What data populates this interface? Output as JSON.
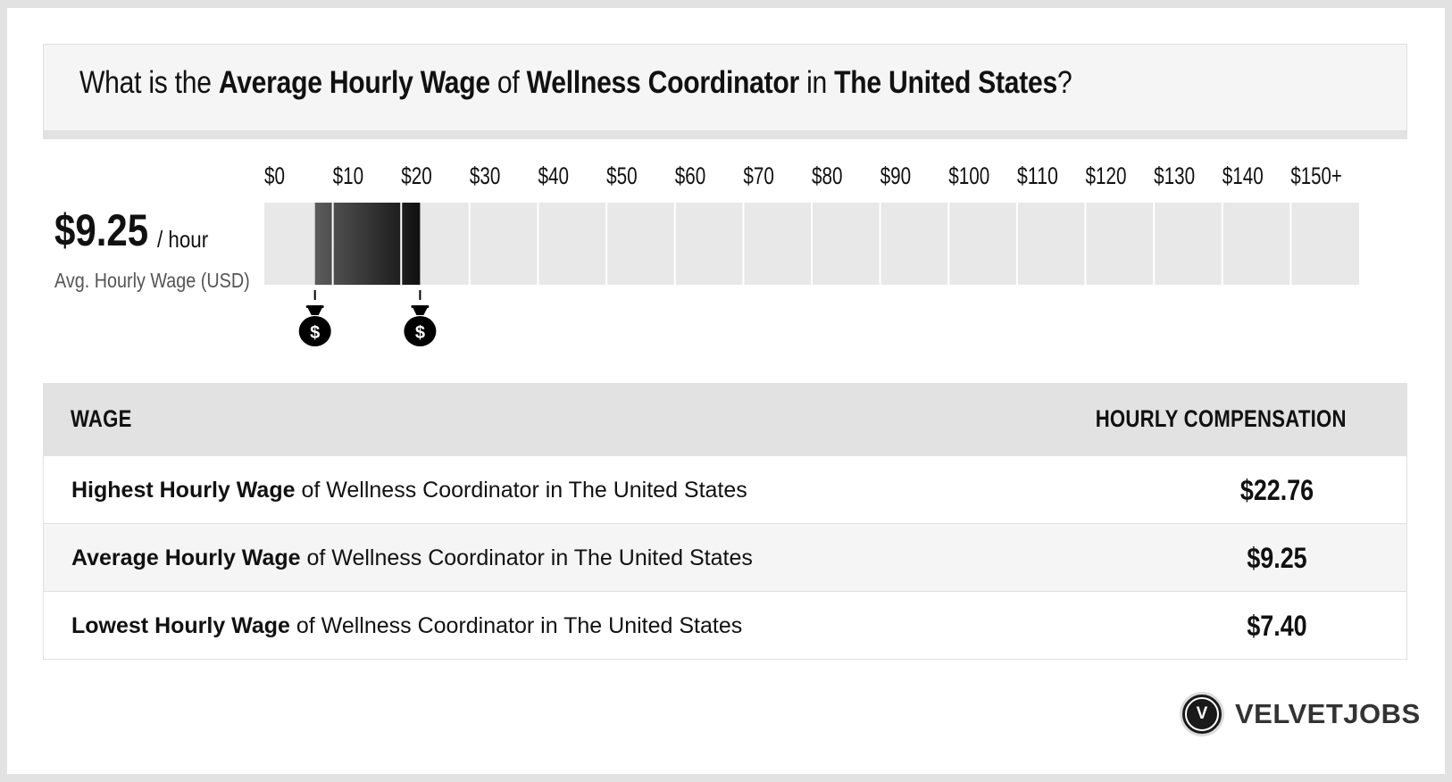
{
  "header": {
    "q_prefix": "What is the ",
    "q_metric": "Average Hourly Wage",
    "q_of": " of ",
    "q_job": "Wellness Coordinator",
    "q_in": " in ",
    "q_location": "The United States",
    "q_suffix": "?"
  },
  "summary": {
    "value": "$9.25",
    "unit": "/ hour",
    "label": "Avg. Hourly Wage (USD)"
  },
  "chart_data": {
    "type": "bar",
    "orientation": "horizontal-range",
    "categories": [
      "$0",
      "$10",
      "$20",
      "$30",
      "$40",
      "$50",
      "$60",
      "$70",
      "$80",
      "$90",
      "$100",
      "$110",
      "$120",
      "$130",
      "$140",
      "$150+"
    ],
    "xlim": [
      0,
      160
    ],
    "range_low": 7.4,
    "range_avg": 9.25,
    "range_high": 22.76,
    "markers": [
      {
        "name": "money-bag-low-icon",
        "value": 7.4
      },
      {
        "name": "money-bag-high-icon",
        "value": 22.76
      }
    ],
    "colors": {
      "track": "#e8e8e8",
      "divider": "#ffffff",
      "range_light": "#5c5c5c",
      "range_dark": "#101010",
      "marker": "#000000"
    }
  },
  "table": {
    "col_wage": "WAGE",
    "col_comp": "HOURLY COMPENSATION",
    "rows": [
      {
        "metric": "Highest Hourly Wage",
        "rest": " of Wellness Coordinator in The United States",
        "value": "$22.76"
      },
      {
        "metric": "Average Hourly Wage",
        "rest": " of Wellness Coordinator in The United States",
        "value": "$9.25"
      },
      {
        "metric": "Lowest Hourly Wage",
        "rest": " of Wellness Coordinator in The United States",
        "value": "$7.40"
      }
    ]
  },
  "brand": {
    "logo_letter": "V",
    "name": "VELVETJOBS"
  }
}
